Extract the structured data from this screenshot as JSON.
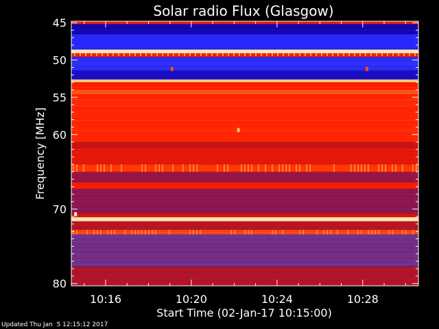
{
  "chart_data": {
    "type": "heatmap",
    "title": "Solar radio Flux (Glasgow)",
    "xlabel": "Start Time (02-Jan-17 10:15:00)",
    "ylabel": "Frequency [MHz]",
    "x_unit": "minutes after 10:15:00",
    "xlim": [
      -0.6,
      15.6
    ],
    "ylim": [
      44.8,
      80.3
    ],
    "y_reversed": true,
    "x_ticks": [
      {
        "label": "10:16",
        "minute": 1
      },
      {
        "label": "10:20",
        "minute": 5
      },
      {
        "label": "10:24",
        "minute": 9
      },
      {
        "label": "10:28",
        "minute": 13
      }
    ],
    "y_ticks": [
      45,
      50,
      55,
      60,
      70,
      80
    ],
    "colormap": [
      "#1000a0",
      "#2828ff",
      "#5050c8",
      "#8c1450",
      "#c81414",
      "#ff1e00",
      "#ff6a1e",
      "#ffc070",
      "#fff4c8"
    ],
    "bands": [
      {
        "from": 44.8,
        "to": 45.2,
        "level": 0.55
      },
      {
        "from": 45.2,
        "to": 46.5,
        "level": 0.02
      },
      {
        "from": 46.5,
        "to": 48.6,
        "level": 0.12
      },
      {
        "from": 48.6,
        "to": 49.1,
        "level": 0.97
      },
      {
        "from": 49.1,
        "to": 49.6,
        "level": 0.6
      },
      {
        "from": 49.6,
        "to": 51.4,
        "level": 0.14
      },
      {
        "from": 51.4,
        "to": 52.6,
        "level": 0.04
      },
      {
        "from": 52.6,
        "to": 53.0,
        "level": 0.88
      },
      {
        "from": 53.0,
        "to": 54.0,
        "level": 0.62
      },
      {
        "from": 54.0,
        "to": 54.6,
        "level": 0.72
      },
      {
        "from": 54.6,
        "to": 61.0,
        "level": 0.64
      },
      {
        "from": 61.0,
        "to": 61.8,
        "level": 0.5
      },
      {
        "from": 61.8,
        "to": 64.0,
        "level": 0.56
      },
      {
        "from": 64.0,
        "to": 65.0,
        "level": 0.66
      },
      {
        "from": 65.0,
        "to": 66.4,
        "level": 0.4
      },
      {
        "from": 66.4,
        "to": 67.3,
        "level": 0.6
      },
      {
        "from": 67.3,
        "to": 70.6,
        "level": 0.38
      },
      {
        "from": 70.6,
        "to": 71.1,
        "level": 0.52
      },
      {
        "from": 71.1,
        "to": 71.6,
        "level": 0.95
      },
      {
        "from": 71.6,
        "to": 72.8,
        "level": 0.46
      },
      {
        "from": 72.8,
        "to": 73.4,
        "level": 0.7
      },
      {
        "from": 73.4,
        "to": 77.8,
        "level": 0.32
      },
      {
        "from": 77.8,
        "to": 80.3,
        "level": 0.45
      }
    ],
    "events": [
      {
        "minute": 4.1,
        "freq": 51.2,
        "level": 0.7
      },
      {
        "minute": 13.2,
        "freq": 51.2,
        "level": 0.7
      },
      {
        "minute": 7.2,
        "freq": 59.4,
        "level": 0.88
      },
      {
        "minute": -0.4,
        "freq": 70.7,
        "level": 0.99
      }
    ]
  },
  "footer": {
    "updated": "Updated Thu Jan  5 12:15:12 2017"
  }
}
